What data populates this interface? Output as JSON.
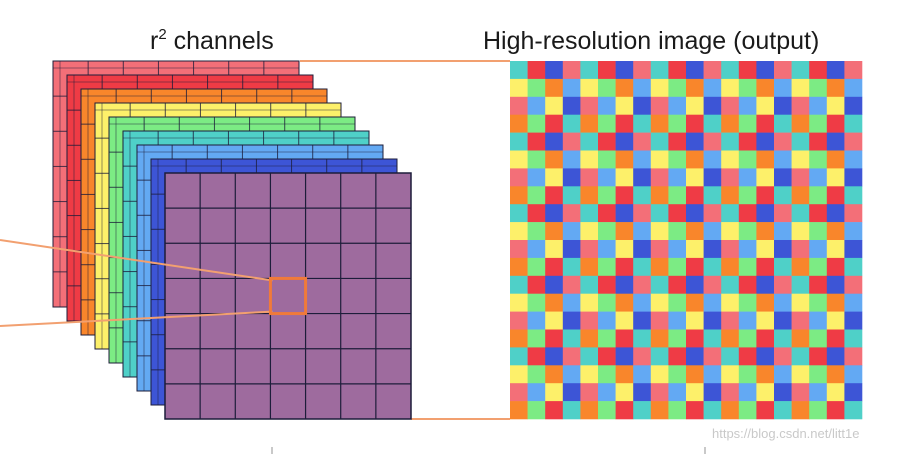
{
  "labels": {
    "left_base": "r",
    "left_sup": "2",
    "left_rest": " channels",
    "right": "High-resolution image (output)"
  },
  "watermark": "https://blog.csdn.net/litt1e",
  "colors": {
    "channels": [
      "#f36f78",
      "#ef3b45",
      "#f9862b",
      "#fdf06a",
      "#7ceb84",
      "#4fd0c8",
      "#63a9f3",
      "#3d55d6"
    ],
    "front": "#9e6b9e",
    "grid_line": "#1d1d3a",
    "highlight": "#f07a3a",
    "connector": "#f2a070"
  },
  "front_grid": {
    "rows": 7,
    "cols": 7,
    "highlight": {
      "row": 3,
      "col": 3
    }
  },
  "output_grid": {
    "rows": 20,
    "cols": 20
  }
}
